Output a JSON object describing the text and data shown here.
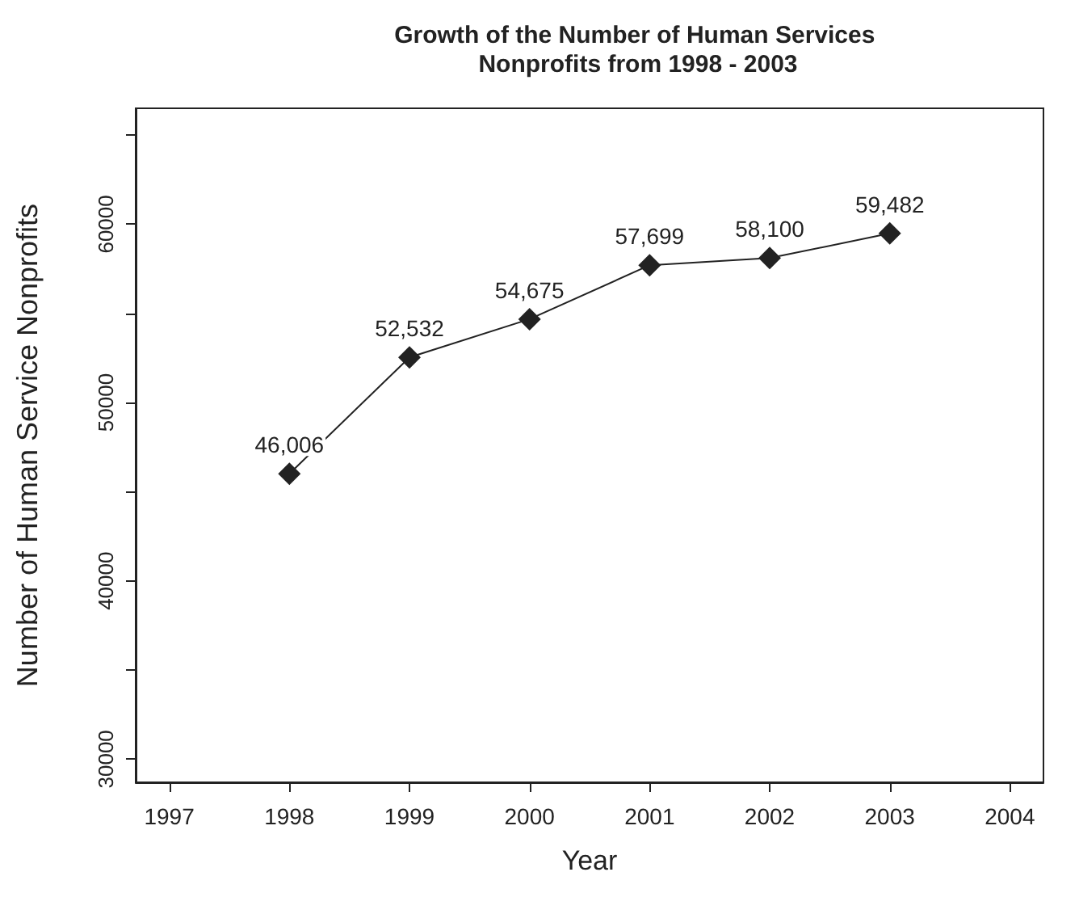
{
  "chart_data": {
    "type": "line",
    "title": "Growth of the Number of Human Services Nonprofits from 1998 - 2003",
    "xlabel": "Year",
    "ylabel": "Number of Human Service Nonprofits",
    "x": [
      1998,
      1999,
      2000,
      2001,
      2002,
      2003
    ],
    "values": [
      46006,
      52532,
      54675,
      57699,
      58100,
      59482
    ],
    "value_labels": [
      "46,006",
      "52,532",
      "54,675",
      "57,699",
      "58,100",
      "59,482"
    ],
    "color": "#222222",
    "marker": "diamond",
    "line_style": "solid",
    "grid": false,
    "xlim": [
      1996.72,
      2004.28
    ],
    "xticks": [
      1997,
      1998,
      1999,
      2000,
      2001,
      2002,
      2003,
      2004
    ],
    "ylim": [
      28700,
      66500
    ],
    "yticks": [
      30000,
      {
        "value": 35000,
        "label": null
      },
      40000,
      {
        "value": 45000,
        "label": null
      },
      50000,
      {
        "value": 55000,
        "label": null
      },
      60000,
      {
        "value": 65000,
        "label": null
      }
    ]
  }
}
